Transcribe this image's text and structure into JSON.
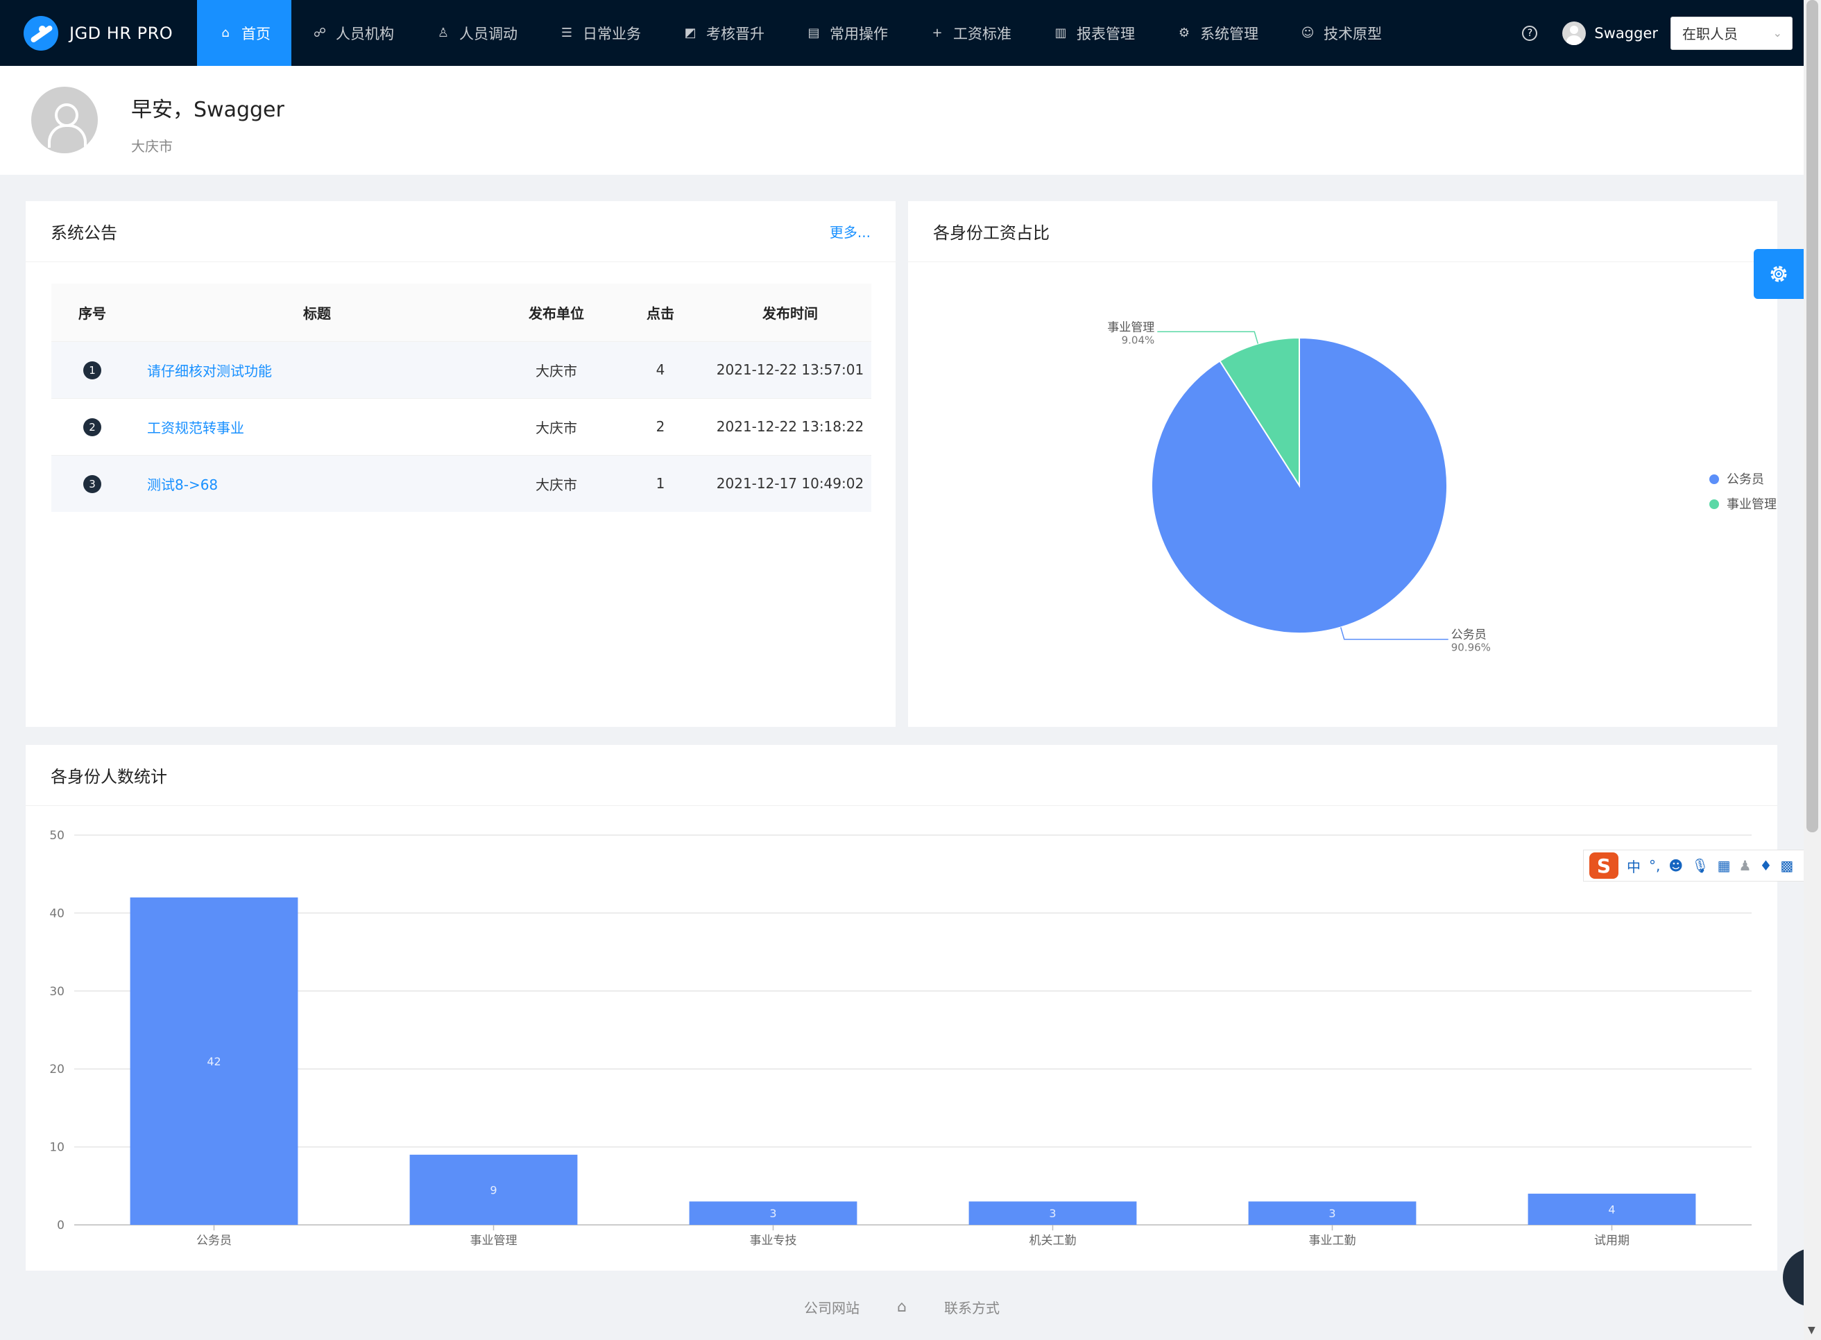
{
  "header": {
    "brand": "JGD HR PRO",
    "nav": [
      {
        "label": "首页",
        "icon": "home-icon",
        "active": true
      },
      {
        "label": "人员机构",
        "icon": "org-icon"
      },
      {
        "label": "人员调动",
        "icon": "user-icon"
      },
      {
        "label": "日常业务",
        "icon": "list-icon"
      },
      {
        "label": "考核晋升",
        "icon": "chart-box-icon"
      },
      {
        "label": "常用操作",
        "icon": "doc-icon"
      },
      {
        "label": "工资标准",
        "icon": "plus-icon"
      },
      {
        "label": "报表管理",
        "icon": "bar-chart-icon"
      },
      {
        "label": "系统管理",
        "icon": "gear-icon"
      },
      {
        "label": "技术原型",
        "icon": "smile-icon"
      }
    ],
    "user_name": "Swagger",
    "role": "在职人员"
  },
  "welcome": {
    "greeting": "早安，Swagger",
    "city": "大庆市"
  },
  "notice": {
    "title": "系统公告",
    "more": "更多...",
    "columns": [
      "序号",
      "标题",
      "发布单位",
      "点击",
      "发布时间"
    ],
    "rows": [
      {
        "idx": "1",
        "title": "请仔细核对测试功能",
        "unit": "大庆市",
        "clicks": "4",
        "time": "2021-12-22 13:57:01"
      },
      {
        "idx": "2",
        "title": "工资规范转事业",
        "unit": "大庆市",
        "clicks": "2",
        "time": "2021-12-22 13:18:22"
      },
      {
        "idx": "3",
        "title": "测试8->68",
        "unit": "大庆市",
        "clicks": "1",
        "time": "2021-12-17 10:49:02"
      }
    ]
  },
  "pie": {
    "title": "各身份工资占比"
  },
  "bar": {
    "title": "各身份人数统计"
  },
  "chart_data": [
    {
      "type": "pie",
      "title": "各身份工资占比",
      "slices": [
        {
          "name": "公务员",
          "value": 90.96,
          "label": "90.96%",
          "color": "#5b8ff9"
        },
        {
          "name": "事业管理",
          "value": 9.04,
          "label": "9.04%",
          "color": "#5ad8a6"
        }
      ],
      "legend": "right"
    },
    {
      "type": "bar",
      "title": "各身份人数统计",
      "categories": [
        "公务员",
        "事业管理",
        "事业专技",
        "机关工勤",
        "事业工勤",
        "试用期"
      ],
      "values": [
        42,
        9,
        3,
        3,
        3,
        4
      ],
      "ylim": [
        0,
        50
      ],
      "yticks": [
        0,
        10,
        20,
        30,
        40,
        50
      ],
      "color": "#5b8ff9",
      "grid": true
    }
  ],
  "ime": {
    "logo": "S",
    "lang": "中",
    "punct": "°,"
  },
  "footer": {
    "links": [
      "公司网站",
      "联系方式"
    ]
  }
}
